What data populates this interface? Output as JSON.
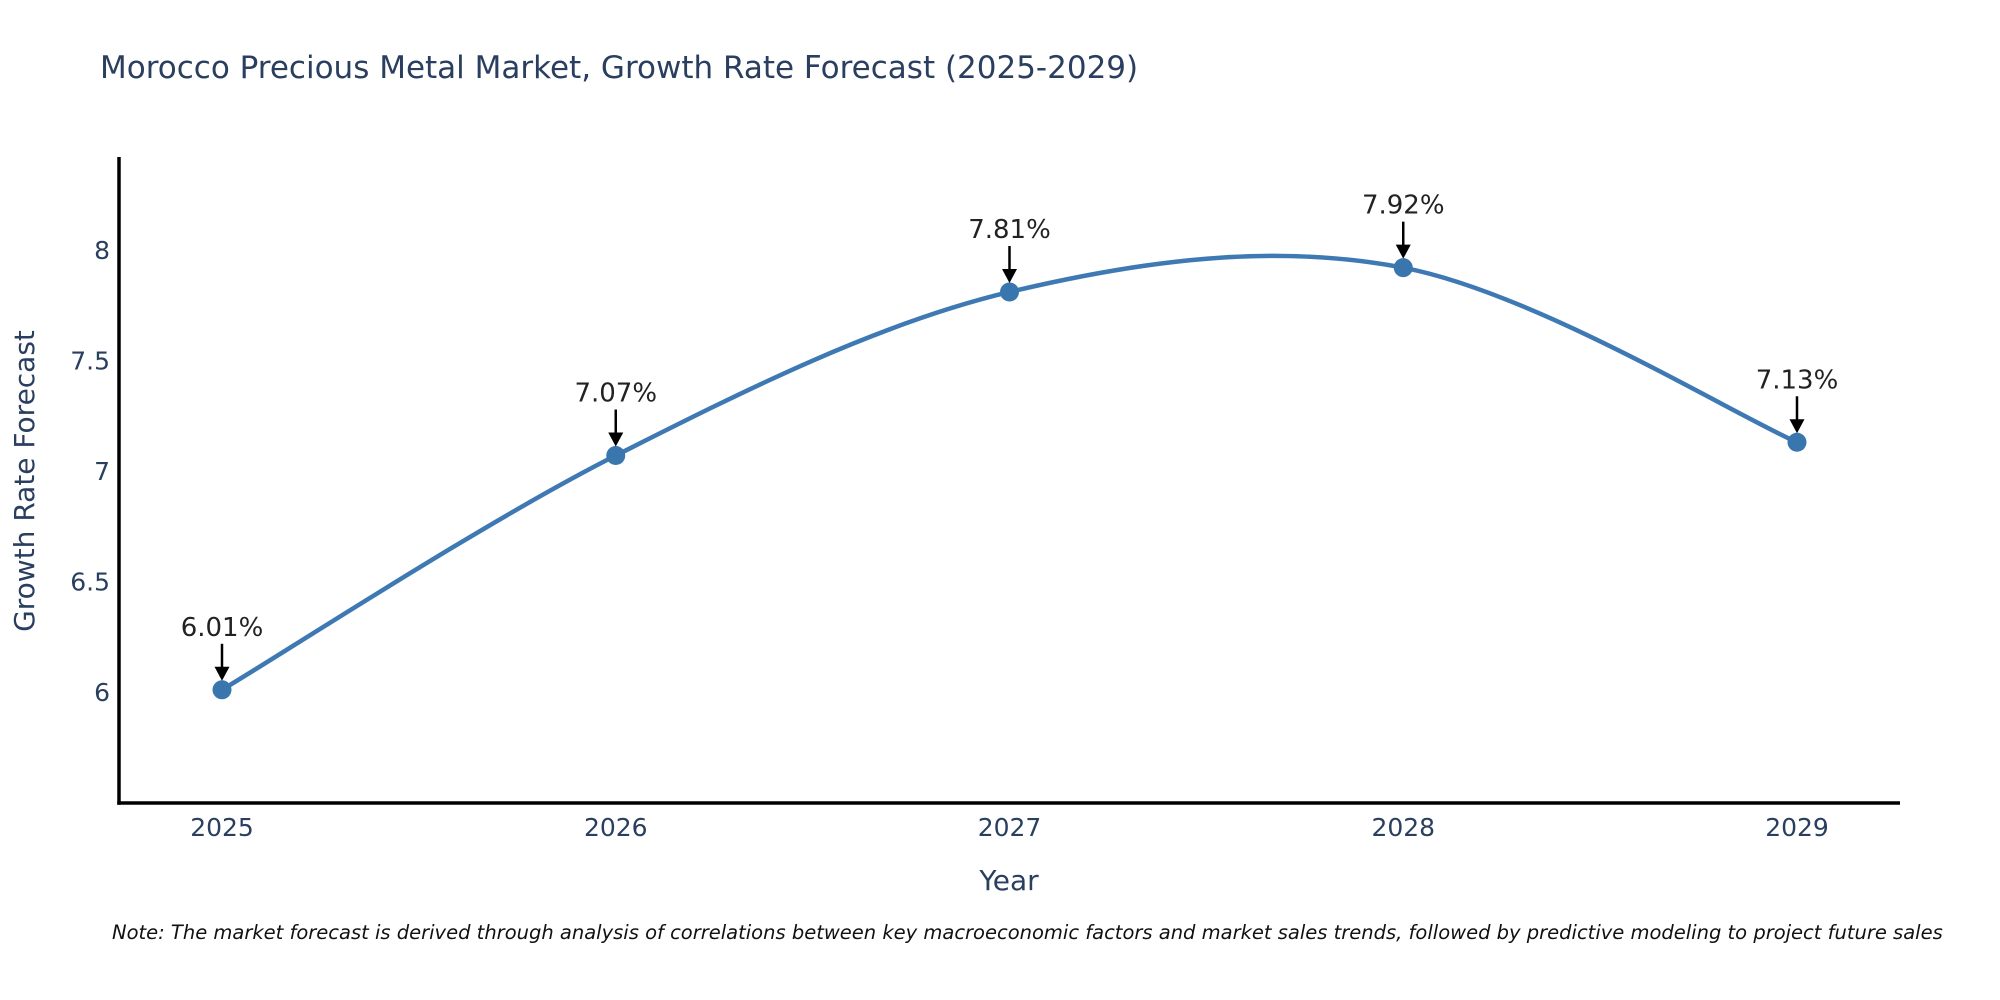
{
  "title": "Morocco Precious Metal Market, Growth Rate Forecast (2025-2029)",
  "note": "Note: The market forecast is derived through analysis of correlations between key macroeconomic factors and market sales trends, followed by predictive modeling to project future sales",
  "colors": {
    "line": "#3e79b4",
    "marker": "#3a76ae",
    "axis": "#000000",
    "text": "#2a3f5f",
    "annotation_text": "#222222",
    "arrow": "#000000"
  },
  "chart_data": {
    "type": "line",
    "title": "Morocco Precious Metal Market, Growth Rate Forecast (2025-2029)",
    "xlabel": "Year",
    "ylabel": "Growth Rate Forecast",
    "categories": [
      2025,
      2026,
      2027,
      2028,
      2029
    ],
    "series": [
      {
        "name": "Growth Rate Forecast",
        "values": [
          6.01,
          7.07,
          7.81,
          7.92,
          7.13
        ]
      }
    ],
    "point_labels": [
      "6.01%",
      "7.07%",
      "7.81%",
      "7.92%",
      "7.13%"
    ],
    "yticks": [
      6,
      6.5,
      7,
      7.5,
      8
    ],
    "xticks": [
      "2025",
      "2026",
      "2027",
      "2028",
      "2029"
    ],
    "ylim": [
      5.49,
      8.42
    ],
    "xlim": [
      2024.73,
      2029.26
    ],
    "grid": false,
    "legend": false,
    "curve": "spline",
    "annotations": "arrow-down-to-point"
  }
}
